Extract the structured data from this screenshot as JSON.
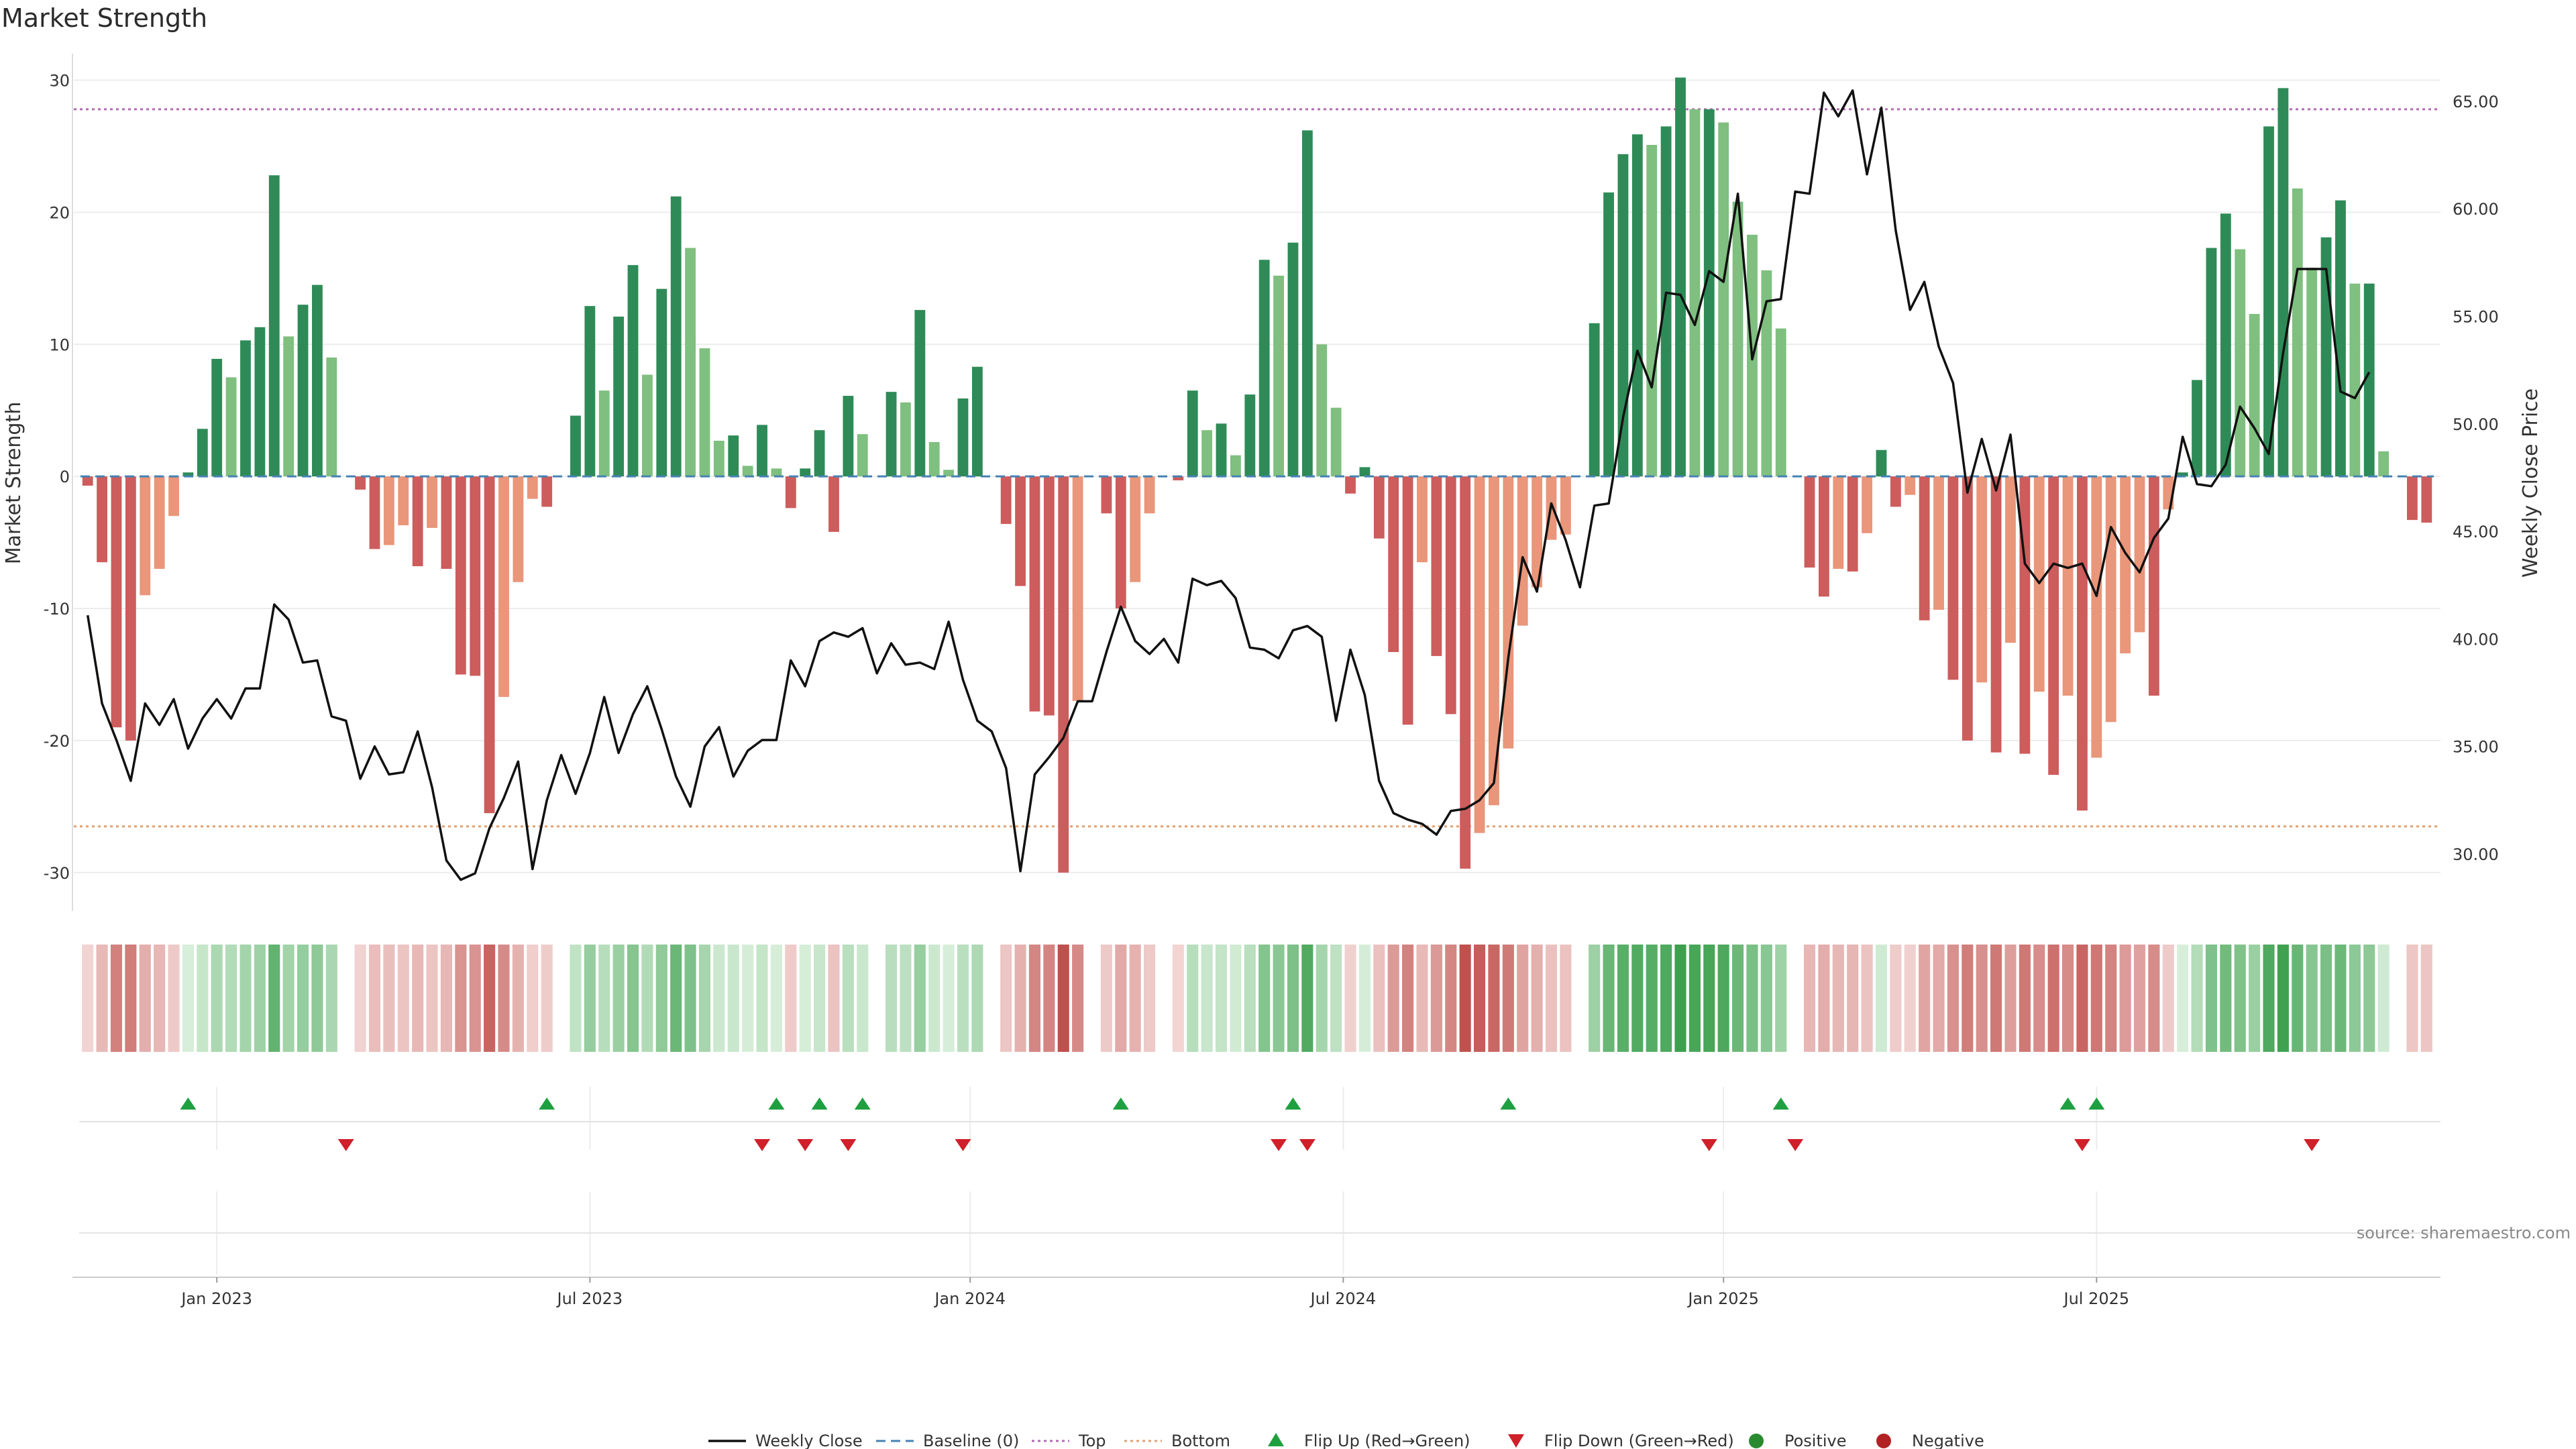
{
  "title": "Market Strength",
  "source": "source: sharemaestro.com",
  "chart_data": {
    "type": "bar",
    "title": "Market Strength",
    "ylabel": "Market Strength",
    "y2label": "Weekly Close Price",
    "ylim": [
      -32.5,
      31.5
    ],
    "y2lim": [
      27.6,
      66.9
    ],
    "yticks": [
      -30,
      -20,
      -10,
      0,
      10,
      20,
      30
    ],
    "y2ticks": [
      30.0,
      35.0,
      40.0,
      45.0,
      50.0,
      55.0,
      60.0,
      65.0
    ],
    "y2tick_labels": [
      "30.00",
      "35.00",
      "40.00",
      "45.00",
      "50.00",
      "55.00",
      "60.00",
      "65.00"
    ],
    "top_line": 27.8,
    "bottom_line": -26.5,
    "start_week": 0,
    "x_ticks": [
      {
        "week": 9,
        "label": "Jan 2023"
      },
      {
        "week": 35,
        "label": "Jul 2023"
      },
      {
        "week": 61.5,
        "label": "Jan 2024"
      },
      {
        "week": 87.5,
        "label": "Jul 2024"
      },
      {
        "week": 114,
        "label": "Jan 2025"
      },
      {
        "week": 140,
        "label": "Jul 2025"
      }
    ],
    "series": [
      {
        "name": "Market Strength",
        "values": [
          -0.7,
          -6.5,
          -19,
          -20,
          -9,
          -7,
          -3,
          0.3,
          3.6,
          8.9,
          7.5,
          10.3,
          11.3,
          22.8,
          10.6,
          13,
          14.5,
          9,
          0,
          -1,
          -5.5,
          -5.2,
          -3.7,
          -6.8,
          -3.9,
          -7,
          -15,
          -15.1,
          -25.5,
          -16.7,
          -8,
          -1.7,
          -2.3,
          0,
          4.6,
          12.9,
          6.5,
          12.1,
          16,
          7.7,
          14.2,
          21.2,
          17.3,
          9.7,
          2.7,
          3.1,
          0.8,
          3.9,
          0.6,
          -2.4,
          0.6,
          3.5,
          -4.2,
          6.1,
          3.2,
          0,
          6.4,
          5.6,
          12.6,
          2.6,
          0.5,
          5.9,
          8.3,
          0,
          -3.6,
          -8.3,
          -17.8,
          -18.1,
          -30,
          -17,
          0,
          -2.8,
          -10,
          -8,
          -2.8,
          0,
          -0.3,
          6.5,
          3.5,
          4,
          1.6,
          6.2,
          16.4,
          15.2,
          17.7,
          26.2,
          10,
          5.2,
          -1.3,
          0.7,
          -4.7,
          -13.3,
          -18.8,
          -6.5,
          -13.6,
          -18,
          -29.7,
          -27,
          -24.9,
          -20.6,
          -11.3,
          -8.4,
          -4.8,
          -4.4,
          0,
          11.6,
          21.5,
          24.4,
          25.9,
          25.1,
          26.5,
          30.2,
          27.8,
          27.8,
          26.8,
          20.8,
          18.3,
          15.6,
          11.2,
          0,
          -6.9,
          -9.1,
          -7,
          -7.2,
          -4.3,
          2,
          -2.3,
          -1.4,
          -10.9,
          -10.1,
          -15.4,
          -20,
          -15.6,
          -20.9,
          -12.6,
          -21,
          -16.3,
          -22.6,
          -16.6,
          -25.3,
          -21.3,
          -18.6,
          -13.4,
          -11.8,
          -16.6,
          -2.5,
          0.3,
          7.3,
          17.3,
          19.9,
          17.2,
          12.3,
          26.5,
          29.4,
          21.8,
          15.8,
          18.1,
          20.9,
          14.6,
          14.6,
          1.9,
          0,
          -3.3,
          -3.5
        ]
      },
      {
        "name": "Weekly Close",
        "values": [
          41.1,
          37,
          35.3,
          33.4,
          37,
          36,
          37.2,
          34.9,
          36.3,
          37.2,
          36.3,
          37.7,
          37.7,
          41.6,
          40.9,
          38.9,
          39,
          36.4,
          36.2,
          33.5,
          35,
          33.7,
          33.8,
          35.7,
          33.1,
          29.7,
          28.8,
          29.1,
          31.2,
          32.6,
          34.3,
          29.3,
          32.5,
          34.6,
          32.8,
          34.7,
          37.3,
          34.7,
          36.5,
          37.8,
          35.8,
          33.6,
          32.2,
          35,
          35.9,
          33.6,
          34.8,
          35.3,
          35.3,
          39,
          37.8,
          39.9,
          40.3,
          40.1,
          40.5,
          38.4,
          39.8,
          38.8,
          38.9,
          38.6,
          40.8,
          38.1,
          36.2,
          35.7,
          34,
          29.2,
          33.7,
          34.5,
          35.4,
          37.1,
          37.1,
          39.4,
          41.5,
          39.9,
          39.3,
          40,
          38.9,
          42.8,
          42.5,
          42.7,
          41.9,
          39.6,
          39.5,
          39.1,
          40.4,
          40.6,
          40.1,
          36.2,
          39.5,
          37.4,
          33.4,
          31.9,
          31.6,
          31.4,
          30.9,
          32,
          32.1,
          32.5,
          33.3,
          39.1,
          43.8,
          42.2,
          46.3,
          44.6,
          42.4,
          46.2,
          46.3,
          50.3,
          53.4,
          51.7,
          56.1,
          56,
          54.6,
          57.1,
          56.6,
          60.7,
          53,
          55.7,
          55.8,
          60.8,
          60.7,
          65.4,
          64.3,
          65.5,
          61.6,
          64.7,
          59,
          55.3,
          56.6,
          53.6,
          51.9,
          46.8,
          49.3,
          46.9,
          49.5,
          43.5,
          42.6,
          43.5,
          43.3,
          43.5,
          42,
          45.2,
          44,
          43.1,
          44.7,
          45.6,
          49.4,
          47.2,
          47.1,
          48.1,
          50.8,
          49.8,
          48.6,
          53.3,
          57.2,
          57.2,
          57.2,
          51.5,
          51.2,
          52.4
        ]
      }
    ],
    "heat_strip": [
      -0.7,
      -6.5,
      -19,
      -20,
      -9,
      -7,
      -3,
      0.3,
      3.6,
      8.9,
      7.5,
      10.3,
      11.3,
      22.8,
      10.6,
      13,
      14.5,
      9,
      0,
      -1,
      -5.5,
      -5.2,
      -3.7,
      -6.8,
      -3.9,
      -7,
      -15,
      -15.1,
      -25.5,
      -16.7,
      -8,
      -1.7,
      -2.3,
      0,
      4.6,
      12.9,
      6.5,
      12.1,
      16,
      7.7,
      14.2,
      21.2,
      17.3,
      9.7,
      2.7,
      3.1,
      0.8,
      3.9,
      0.6,
      -2.4,
      0.6,
      3.5,
      -4.2,
      6.1,
      3.2,
      0,
      6.4,
      5.6,
      12.6,
      2.6,
      0.5,
      5.9,
      8.3,
      0,
      -3.6,
      -8.3,
      -17.8,
      -18.1,
      -30,
      -17,
      0,
      -2.8,
      -10,
      -8,
      -2.8,
      0,
      -0.3,
      6.5,
      3.5,
      4,
      1.6,
      6.2,
      16.4,
      15.2,
      17.7,
      26.2,
      10,
      5.2,
      -1.3,
      0.7,
      -4.7,
      -13.3,
      -18.8,
      -6.5,
      -13.6,
      -18,
      -29.7,
      -27,
      -24.9,
      -20.6,
      -11.3,
      -8.4,
      -4.8,
      -4.4,
      0,
      11.6,
      21.5,
      24.4,
      25.9,
      25.1,
      26.5,
      30.2,
      27.8,
      27.8,
      26.8,
      20.8,
      18.3,
      15.6,
      11.2,
      0,
      -6.9,
      -9.1,
      -7,
      -7.2,
      -4.3,
      2,
      -2.3,
      -1.4,
      -10.9,
      -10.1,
      -15.4,
      -20,
      -15.6,
      -20.9,
      -12.6,
      -21,
      -16.3,
      -22.6,
      -16.6,
      -25.3,
      -21.3,
      -18.6,
      -13.4,
      -11.8,
      -16.6,
      -2.5,
      0.3,
      7.3,
      17.3,
      19.9,
      17.2,
      12.3,
      26.5,
      29.4,
      21.8,
      15.8,
      18.1,
      20.9,
      14.6,
      14.6,
      1.9,
      0,
      -3.3,
      -3.5
    ],
    "flip_up_weeks": [
      7,
      32,
      48,
      51,
      54,
      72,
      84,
      99,
      118,
      138,
      140
    ],
    "flip_down_weeks": [
      18,
      47,
      50,
      53,
      61,
      83,
      85,
      113,
      119,
      139,
      155
    ],
    "legend": [
      {
        "label": "Weekly Close",
        "symbol": "line"
      },
      {
        "label": "Baseline (0)",
        "symbol": "dashed-line"
      },
      {
        "label": "Top",
        "symbol": "dotted-line"
      },
      {
        "label": "Bottom",
        "symbol": "dotted-line"
      },
      {
        "label": "Flip Up (Red→Green)",
        "symbol": "triangle-up"
      },
      {
        "label": "Flip Down (Green→Red)",
        "symbol": "triangle-down"
      },
      {
        "label": "Positive",
        "symbol": "circle"
      },
      {
        "label": "Negative",
        "symbol": "circle"
      }
    ],
    "colors": {
      "strong_positive": "#2e8b57",
      "light_positive": "#7fbf7f",
      "strong_negative": "#cd5c5c",
      "light_negative": "#e9967a",
      "price_line": "#111111",
      "baseline": "#4682b4",
      "top": "#b36bb3",
      "bottom": "#e0a070",
      "flip_up": "#1fa040",
      "flip_down": "#d0202a",
      "positive_dot": "#2a8a30",
      "negative_dot": "#b22222",
      "grid": "#ececec"
    }
  }
}
